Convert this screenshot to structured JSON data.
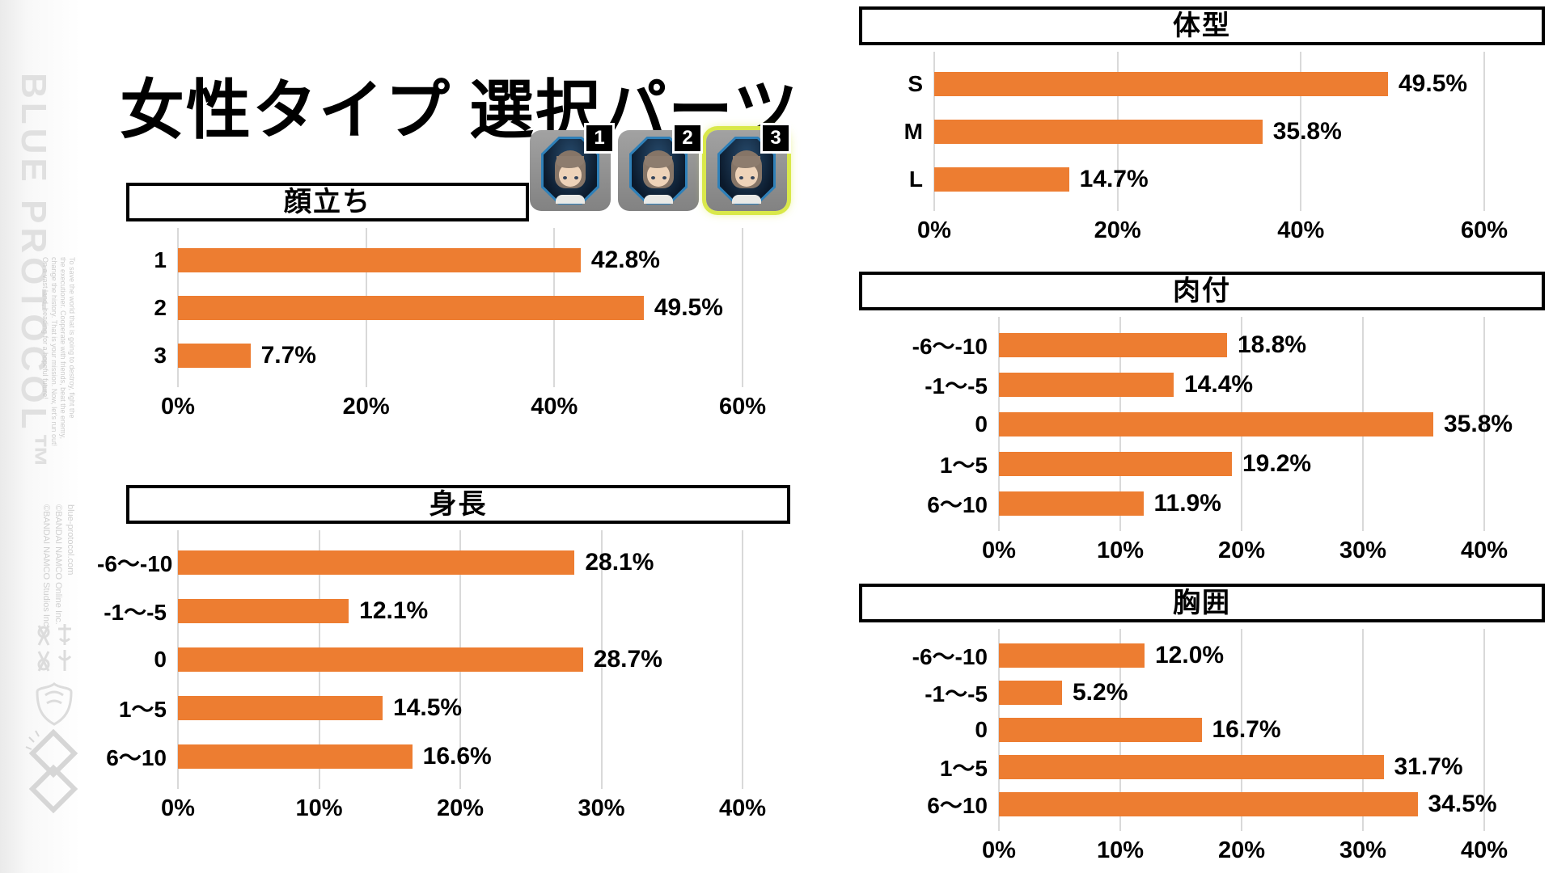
{
  "page": {
    "title": "女性タイプ 選択パーツ"
  },
  "sidebar": {
    "logo_text": "BLUE PROTOCOL™",
    "tagline_lines": [
      "To save the world that is going to destroy, fight the",
      "the executioner. Cooperate with friends, beat the enemy,",
      "change the history. That is your mission. Now, let's run out!",
      "On a vast land, heading for a hopeful future!"
    ],
    "site_text": "blue-protocol.com",
    "copyright_lines": [
      "©BANDAI NAMCO Online Inc.",
      "©BANDAI NAMCO Studios Inc."
    ]
  },
  "face_icons": {
    "items": [
      {
        "badge": "1",
        "selected": false
      },
      {
        "badge": "2",
        "selected": false
      },
      {
        "badge": "3",
        "selected": true
      }
    ]
  },
  "colors": {
    "bar": "#ED7D31",
    "grid": "#D9D9D9",
    "header_border": "#000000",
    "selected_glow": "#D9E84A",
    "badge_bg": "#000000",
    "badge_text": "#FFFFFF",
    "logo_gray": "#E0E0E0"
  },
  "chart_data": [
    {
      "key": "kaodachi",
      "type": "bar",
      "orientation": "horizontal",
      "title": "顔立ち",
      "categories": [
        "1",
        "2",
        "3"
      ],
      "values": [
        42.8,
        49.5,
        7.7
      ],
      "value_labels": [
        "42.8%",
        "49.5%",
        "7.7%"
      ],
      "xlim": [
        0,
        60
      ],
      "ticks": [
        "0%",
        "20%",
        "40%",
        "60%"
      ],
      "grid": true,
      "legend": false,
      "bar_color": "#ED7D31"
    },
    {
      "key": "shincho",
      "type": "bar",
      "orientation": "horizontal",
      "title": "身長",
      "categories": [
        "-6〜-10",
        "-1〜-5",
        "0",
        "1〜5",
        "6〜10"
      ],
      "values": [
        28.1,
        12.1,
        28.7,
        14.5,
        16.6
      ],
      "value_labels": [
        "28.1%",
        "12.1%",
        "28.7%",
        "14.5%",
        "16.6%"
      ],
      "xlim": [
        0,
        40
      ],
      "ticks": [
        "0%",
        "10%",
        "20%",
        "30%",
        "40%"
      ],
      "grid": true,
      "legend": false,
      "bar_color": "#ED7D31"
    },
    {
      "key": "taikei",
      "type": "bar",
      "orientation": "horizontal",
      "title": "体型",
      "categories": [
        "S",
        "M",
        "L"
      ],
      "values": [
        49.5,
        35.8,
        14.7
      ],
      "value_labels": [
        "49.5%",
        "35.8%",
        "14.7%"
      ],
      "xlim": [
        0,
        60
      ],
      "ticks": [
        "0%",
        "20%",
        "40%",
        "60%"
      ],
      "grid": true,
      "legend": false,
      "bar_color": "#ED7D31"
    },
    {
      "key": "nikuzuki",
      "type": "bar",
      "orientation": "horizontal",
      "title": "肉付",
      "categories": [
        "-6〜-10",
        "-1〜-5",
        "0",
        "1〜5",
        "6〜10"
      ],
      "values": [
        18.8,
        14.4,
        35.8,
        19.2,
        11.9
      ],
      "value_labels": [
        "18.8%",
        "14.4%",
        "35.8%",
        "19.2%",
        "11.9%"
      ],
      "xlim": [
        0,
        40
      ],
      "ticks": [
        "0%",
        "10%",
        "20%",
        "30%",
        "40%"
      ],
      "grid": true,
      "legend": false,
      "bar_color": "#ED7D31"
    },
    {
      "key": "kyoi",
      "type": "bar",
      "orientation": "horizontal",
      "title": "胸囲",
      "categories": [
        "-6〜-10",
        "-1〜-5",
        "0",
        "1〜5",
        "6〜10"
      ],
      "values": [
        12.0,
        5.2,
        16.7,
        31.7,
        34.5
      ],
      "value_labels": [
        "12.0%",
        "5.2%",
        "16.7%",
        "31.7%",
        "34.5%"
      ],
      "xlim": [
        0,
        40
      ],
      "ticks": [
        "0%",
        "10%",
        "20%",
        "30%",
        "40%"
      ],
      "grid": true,
      "legend": false,
      "bar_color": "#ED7D31"
    }
  ]
}
